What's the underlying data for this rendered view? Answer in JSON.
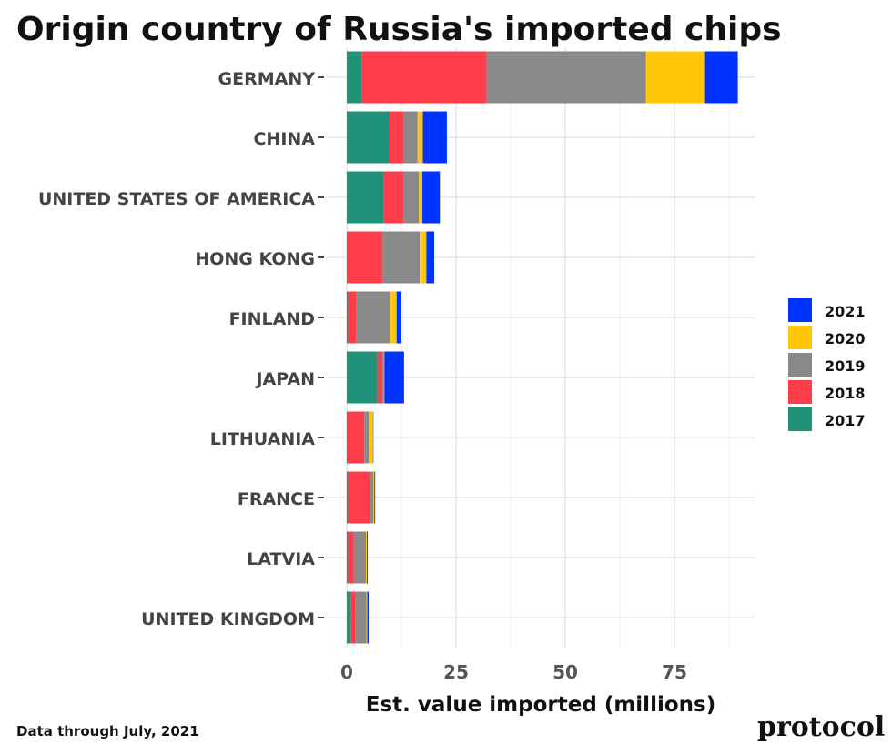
{
  "chart_data": {
    "type": "bar",
    "orientation": "horizontal",
    "stacked": true,
    "title": "Origin country of Russia's imported chips",
    "xlabel": "Est. value imported (millions)",
    "ylabel": "",
    "xlim": [
      0,
      92
    ],
    "xticks": [
      0,
      25,
      50,
      75
    ],
    "grid": true,
    "legend_position": "right",
    "categories": [
      "GERMANY",
      "CHINA",
      "UNITED STATES OF AMERICA",
      "HONG KONG",
      "FINLAND",
      "JAPAN",
      "LITHUANIA",
      "FRANCE",
      "LATVIA",
      "UNITED KINGDOM"
    ],
    "series": [
      {
        "name": "2017",
        "color": "#21927A",
        "values": [
          3.5,
          9.8,
          8.5,
          0.2,
          0.3,
          7.0,
          0.2,
          0.3,
          0.3,
          1.0
        ]
      },
      {
        "name": "2018",
        "color": "#FF3D4A",
        "values": [
          28.5,
          3.2,
          4.5,
          8.0,
          1.8,
          1.2,
          3.8,
          5.0,
          1.3,
          1.0
        ]
      },
      {
        "name": "2019",
        "color": "#898989",
        "values": [
          36.5,
          3.2,
          3.5,
          8.5,
          7.8,
          0.3,
          1.0,
          0.8,
          2.8,
          2.5
        ]
      },
      {
        "name": "2020",
        "color": "#FFC60A",
        "values": [
          13.5,
          1.2,
          0.8,
          1.5,
          1.5,
          0.1,
          1.0,
          0.2,
          0.2,
          0.2
        ]
      },
      {
        "name": "2021",
        "color": "#0033FF",
        "values": [
          7.5,
          5.5,
          4.0,
          1.8,
          1.1,
          4.5,
          0.1,
          0.2,
          0.2,
          0.3
        ]
      }
    ],
    "legend_order": [
      "2021",
      "2020",
      "2019",
      "2018",
      "2017"
    ]
  },
  "footnote": "Data through July, 2021",
  "brand": "protocol"
}
